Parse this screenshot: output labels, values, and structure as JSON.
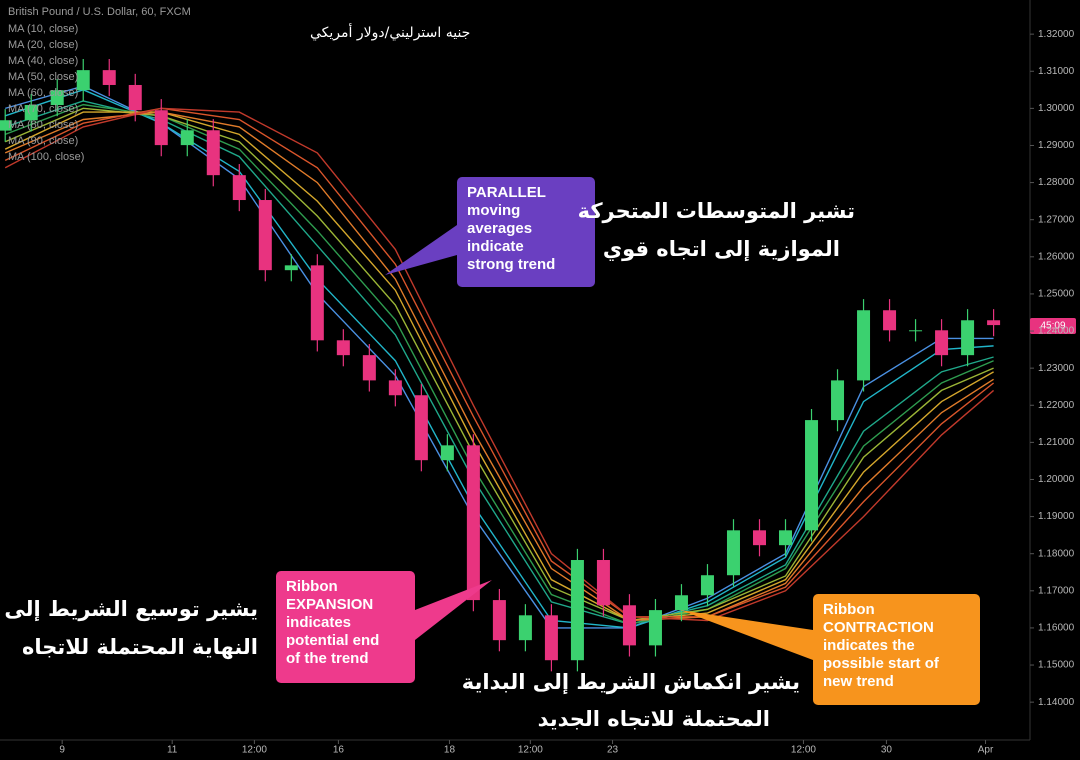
{
  "chart_data": {
    "type": "candlestick",
    "title": "British Pound / U.S. Dollar, 60, FXCM",
    "subtitle": "جنيه استرليني/دولار أمريكي",
    "timer_label": "45:09",
    "x": [
      0,
      1,
      2,
      3,
      4,
      5,
      6,
      7,
      8,
      9,
      10,
      11,
      12,
      13,
      14,
      15,
      16,
      17,
      18,
      19,
      20,
      21,
      22,
      23,
      24,
      25,
      26,
      27,
      28,
      29,
      30,
      31,
      32,
      33,
      34,
      35,
      36,
      37,
      38
    ],
    "open": [
      1.294,
      1.2968,
      1.3009,
      1.3049,
      1.3103,
      1.3063,
      1.2995,
      1.2901,
      1.2941,
      1.282,
      1.2753,
      1.2564,
      1.2577,
      1.2375,
      1.2335,
      1.2267,
      1.2227,
      1.2052,
      1.2092,
      1.1675,
      1.1567,
      1.1634,
      1.1513,
      1.1783,
      1.1661,
      1.1553,
      1.1648,
      1.1688,
      1.1742,
      1.1863,
      1.1823,
      1.1863,
      1.216,
      1.2267,
      1.2456,
      1.2402,
      1.2402,
      1.2335,
      1.2429
    ],
    "high": [
      1.2998,
      1.3039,
      1.3079,
      1.3133,
      1.3133,
      1.3093,
      1.3025,
      1.2971,
      1.2971,
      1.285,
      1.2783,
      1.2607,
      1.2607,
      1.2405,
      1.2365,
      1.2297,
      1.2257,
      1.2122,
      1.2122,
      1.1705,
      1.1664,
      1.1664,
      1.1813,
      1.1813,
      1.1691,
      1.1678,
      1.1718,
      1.1772,
      1.1893,
      1.1893,
      1.1893,
      1.219,
      1.2297,
      1.2486,
      1.2486,
      1.2432,
      1.2432,
      1.2459,
      1.2459
    ],
    "low": [
      1.291,
      1.2938,
      1.2979,
      1.3019,
      1.3033,
      1.2965,
      1.2871,
      1.2871,
      1.279,
      1.2723,
      1.2534,
      1.2534,
      1.2345,
      1.2305,
      1.2237,
      1.2197,
      1.2022,
      1.2022,
      1.1645,
      1.1537,
      1.1537,
      1.1483,
      1.1483,
      1.1631,
      1.1523,
      1.1523,
      1.1618,
      1.1658,
      1.1712,
      1.1793,
      1.1793,
      1.1833,
      1.213,
      1.2237,
      1.2372,
      1.2372,
      1.2305,
      1.2305,
      1.2386
    ],
    "close": [
      1.2968,
      1.3009,
      1.3049,
      1.3103,
      1.3063,
      1.2995,
      1.2901,
      1.2941,
      1.282,
      1.2753,
      1.2564,
      1.2577,
      1.2375,
      1.2335,
      1.2267,
      1.2227,
      1.2052,
      1.2092,
      1.1675,
      1.1567,
      1.1634,
      1.1513,
      1.1783,
      1.1661,
      1.1553,
      1.1648,
      1.1688,
      1.1742,
      1.1863,
      1.1823,
      1.1863,
      1.216,
      1.2267,
      1.2456,
      1.2402,
      1.2402,
      1.2335,
      1.2429,
      1.2416
    ],
    "up_color": "#3bd16f",
    "down_color": "#e8337f",
    "series": [
      {
        "name": "MA (10, close)",
        "color": "#4a90e2",
        "x": [
          0,
          3,
          6,
          9,
          12,
          15,
          18,
          21,
          24,
          27,
          30,
          33,
          36,
          38
        ],
        "values": [
          1.3,
          1.306,
          1.296,
          1.281,
          1.25,
          1.228,
          1.19,
          1.16,
          1.16,
          1.168,
          1.18,
          1.225,
          1.238,
          1.238
        ]
      },
      {
        "name": "MA (20, close)",
        "color": "#21b5c9",
        "x": [
          0,
          3,
          6,
          9,
          12,
          15,
          18,
          21,
          24,
          27,
          30,
          33,
          36,
          38
        ],
        "values": [
          1.298,
          1.305,
          1.296,
          1.283,
          1.254,
          1.232,
          1.193,
          1.162,
          1.16,
          1.167,
          1.179,
          1.221,
          1.235,
          1.236
        ]
      },
      {
        "name": "MA (40, close)",
        "color": "#1fa88a",
        "x": [
          0,
          3,
          6,
          9,
          12,
          15,
          18,
          21,
          24,
          27,
          30,
          33,
          36,
          38
        ],
        "values": [
          1.295,
          1.302,
          1.297,
          1.287,
          1.263,
          1.239,
          1.2,
          1.167,
          1.161,
          1.166,
          1.177,
          1.213,
          1.229,
          1.233
        ]
      },
      {
        "name": "MA (50, close)",
        "color": "#2e9c4f",
        "x": [
          0,
          3,
          6,
          9,
          12,
          15,
          18,
          21,
          24,
          27,
          30,
          33,
          36,
          38
        ],
        "values": [
          1.293,
          1.301,
          1.298,
          1.289,
          1.267,
          1.243,
          1.203,
          1.169,
          1.161,
          1.165,
          1.176,
          1.209,
          1.226,
          1.232
        ]
      },
      {
        "name": "MA (60, close)",
        "color": "#9bb536",
        "x": [
          0,
          3,
          6,
          9,
          12,
          15,
          18,
          21,
          24,
          27,
          30,
          33,
          36,
          38
        ],
        "values": [
          1.291,
          1.3,
          1.298,
          1.291,
          1.271,
          1.247,
          1.207,
          1.171,
          1.162,
          1.165,
          1.174,
          1.206,
          1.224,
          1.23
        ]
      },
      {
        "name": "MA (70, close)",
        "color": "#d4a72c",
        "x": [
          0,
          3,
          6,
          9,
          12,
          15,
          18,
          21,
          24,
          27,
          30,
          33,
          36,
          38
        ],
        "values": [
          1.289,
          1.299,
          1.299,
          1.293,
          1.275,
          1.251,
          1.21,
          1.173,
          1.162,
          1.164,
          1.173,
          1.202,
          1.221,
          1.229
        ]
      },
      {
        "name": "MA (80, close)",
        "color": "#e07b2a",
        "x": [
          0,
          3,
          6,
          9,
          12,
          15,
          18,
          21,
          24,
          27,
          30,
          33,
          36,
          38
        ],
        "values": [
          1.288,
          1.297,
          1.299,
          1.295,
          1.28,
          1.254,
          1.213,
          1.176,
          1.162,
          1.163,
          1.172,
          1.198,
          1.218,
          1.227
        ]
      },
      {
        "name": "MA (90, close)",
        "color": "#d9552b",
        "x": [
          0,
          3,
          6,
          9,
          12,
          15,
          18,
          21,
          24,
          27,
          30,
          33,
          36,
          38
        ],
        "values": [
          1.286,
          1.296,
          1.3,
          1.297,
          1.284,
          1.258,
          1.217,
          1.178,
          1.163,
          1.163,
          1.171,
          1.194,
          1.215,
          1.226
        ]
      },
      {
        "name": "MA (100, close)",
        "color": "#c0392b",
        "x": [
          0,
          3,
          6,
          9,
          12,
          15,
          18,
          21,
          24,
          27,
          30,
          33,
          36,
          38
        ],
        "values": [
          1.284,
          1.295,
          1.3,
          1.299,
          1.288,
          1.262,
          1.22,
          1.18,
          1.163,
          1.162,
          1.17,
          1.19,
          1.212,
          1.224
        ]
      }
    ],
    "xlim": [
      -0.2,
      39.4
    ],
    "xticks": [
      {
        "value": 2.19,
        "label": "9"
      },
      {
        "value": 6.42,
        "label": "11"
      },
      {
        "value": 9.58,
        "label": "12:00"
      },
      {
        "value": 12.81,
        "label": "16"
      },
      {
        "value": 17.08,
        "label": "18"
      },
      {
        "value": 20.19,
        "label": "12:00"
      },
      {
        "value": 23.35,
        "label": "23"
      },
      {
        "value": 30.69,
        "label": "12:00"
      },
      {
        "value": 33.88,
        "label": "30"
      },
      {
        "value": 37.69,
        "label": "Apr"
      }
    ],
    "ylim": [
      1.1298,
      1.3292
    ],
    "yticks": [
      {
        "value": 1.14,
        "label": "1.14000"
      },
      {
        "value": 1.15,
        "label": "1.15000"
      },
      {
        "value": 1.16,
        "label": "1.16000"
      },
      {
        "value": 1.17,
        "label": "1.17000"
      },
      {
        "value": 1.18,
        "label": "1.18000"
      },
      {
        "value": 1.19,
        "label": "1.19000"
      },
      {
        "value": 1.2,
        "label": "1.20000"
      },
      {
        "value": 1.21,
        "label": "1.21000"
      },
      {
        "value": 1.22,
        "label": "1.22000"
      },
      {
        "value": 1.23,
        "label": "1.23000"
      },
      {
        "value": 1.24,
        "label": "1.24000"
      },
      {
        "value": 1.25,
        "label": "1.25000"
      },
      {
        "value": 1.26,
        "label": "1.26000"
      },
      {
        "value": 1.27,
        "label": "1.27000"
      },
      {
        "value": 1.28,
        "label": "1.28000"
      },
      {
        "value": 1.29,
        "label": "1.29000"
      },
      {
        "value": 1.3,
        "label": "1.30000"
      },
      {
        "value": 1.31,
        "label": "1.31000"
      },
      {
        "value": 1.32,
        "label": "1.32000"
      }
    ],
    "grid": false,
    "annotations": [
      {
        "color": "#6a3fc1",
        "lines": [
          "PARALLEL",
          "moving",
          "averages",
          "indicate",
          "strong trend"
        ]
      },
      {
        "color": "#ee3a8c",
        "lines": [
          "Ribbon",
          "EXPANSION",
          "indicates",
          "potential end",
          "of the trend"
        ]
      },
      {
        "color": "#f7941d",
        "lines": [
          "Ribbon",
          "CONTRACTION",
          "indicates the",
          "possible start of",
          "new trend"
        ]
      }
    ],
    "arabic_notes": [
      {
        "lines": [
          "تشير المتوسطات المتحركة",
          "الموازية إلى اتجاه قوي"
        ]
      },
      {
        "lines": [
          "يشير توسيع الشريط إلى",
          "النهاية المحتملة للاتجاه"
        ]
      },
      {
        "lines": [
          "يشير انكماش الشريط إلى البداية",
          "المحتملة للاتجاه الجديد"
        ]
      }
    ]
  }
}
